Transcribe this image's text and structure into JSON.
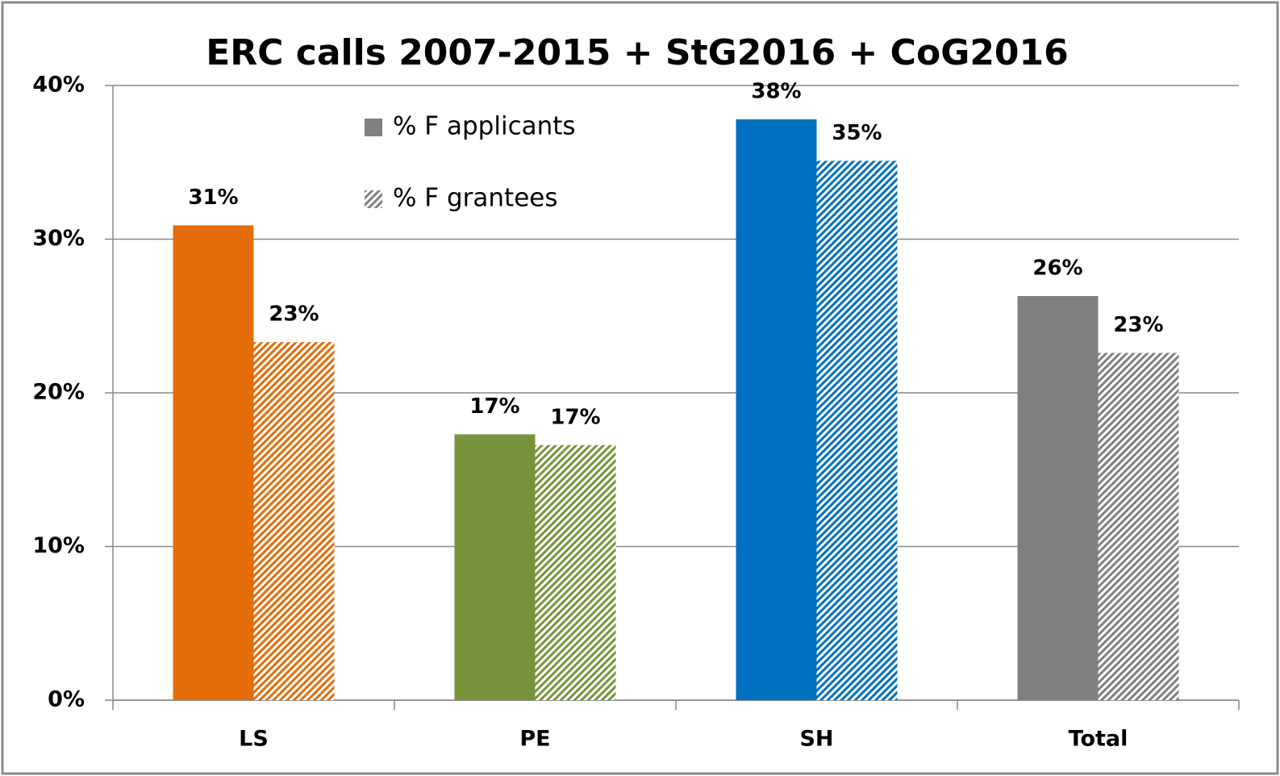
{
  "chart_data": {
    "type": "bar",
    "title": "ERC calls 2007-2015 + StG2016 + CoG2016",
    "categories": [
      "LS",
      "PE",
      "SH",
      "Total"
    ],
    "category_colors": [
      "#e46c0a",
      "#77933c",
      "#0070c0",
      "#808080"
    ],
    "series": [
      {
        "name": "% F applicants",
        "color": "#808080",
        "hatch": false,
        "values": [
          30.9,
          17.3,
          37.8,
          26.3
        ],
        "value_labels": [
          "31%",
          "17%",
          "38%",
          "26%"
        ]
      },
      {
        "name": "% F grantees",
        "color": "#808080",
        "hatch": true,
        "values": [
          23.3,
          16.6,
          35.1,
          22.6
        ],
        "value_labels": [
          "23%",
          "17%",
          "35%",
          "23%"
        ]
      }
    ],
    "ylim": [
      0,
      40
    ],
    "yticks": [
      {
        "value": 0,
        "label": "0%"
      },
      {
        "value": 10,
        "label": "10%"
      },
      {
        "value": 20,
        "label": "20%"
      },
      {
        "value": 30,
        "label": "30%"
      },
      {
        "value": 40,
        "label": "40%"
      }
    ],
    "grid": true
  }
}
